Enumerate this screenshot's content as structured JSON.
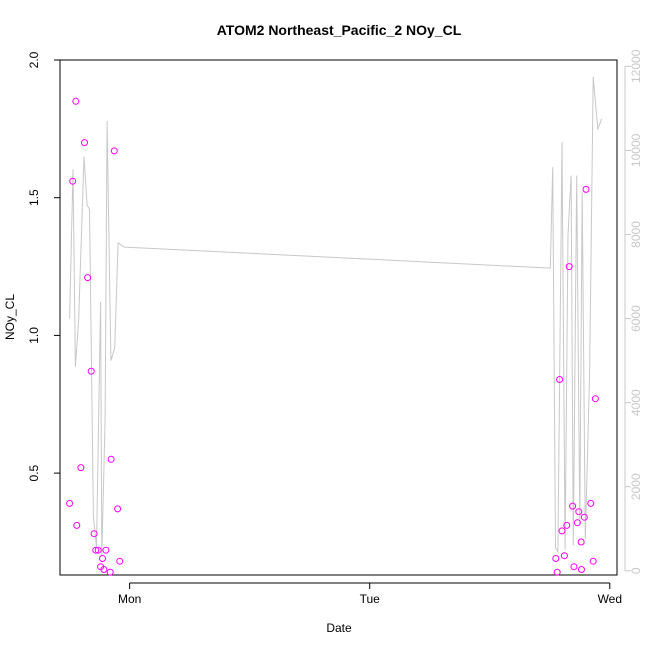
{
  "chart_data": {
    "type": "scatter",
    "title": "ATOM2 Northeast_Pacific_2 NOy_CL",
    "xlabel": "Date",
    "ylabel": "NOy_CL",
    "x_ticks": [
      "Mon",
      "Tue",
      "Wed"
    ],
    "x_tick_values": [
      0,
      1,
      2
    ],
    "y_ticks": [
      "0.5",
      "1.0",
      "1.5",
      "2.0"
    ],
    "y_tick_values": [
      0.5,
      1.0,
      1.5,
      2.0
    ],
    "ylim": [
      0.13,
      2.0
    ],
    "y2_ticks": [
      "0",
      "2000",
      "4000",
      "6000",
      "8000",
      "10000",
      "12000"
    ],
    "y2_tick_values": [
      0,
      2000,
      4000,
      6000,
      8000,
      10000,
      12000
    ],
    "y2lim": [
      -100,
      12150
    ],
    "xlim": [
      -0.29,
      2.03
    ],
    "grid": false,
    "colors": {
      "points": "#ff00ff",
      "line": "#c8c8c8",
      "axis": "#000000",
      "axis2": "#c8c8c8"
    },
    "series": [
      {
        "type": "points",
        "axis": "left",
        "x": [
          -0.25,
          -0.237,
          -0.224,
          -0.22,
          -0.203,
          -0.188,
          -0.175,
          -0.16,
          -0.148,
          -0.141,
          -0.131,
          -0.121,
          -0.113,
          -0.107,
          -0.099,
          -0.081,
          -0.077,
          -0.064,
          -0.05,
          -0.041,
          1.775,
          1.781,
          1.791,
          1.801,
          1.811,
          1.821,
          1.831,
          1.845,
          1.851,
          1.865,
          1.871,
          1.881,
          1.882,
          1.894,
          1.901,
          1.921,
          1.931,
          1.94
        ],
        "y": [
          0.39,
          1.56,
          1.85,
          0.31,
          0.52,
          1.7,
          1.21,
          0.87,
          0.28,
          0.22,
          0.22,
          0.16,
          0.19,
          0.15,
          0.22,
          0.14,
          0.55,
          1.67,
          0.37,
          0.18,
          0.19,
          0.14,
          0.84,
          0.29,
          0.2,
          0.31,
          1.25,
          0.38,
          0.16,
          0.32,
          0.36,
          0.25,
          0.15,
          0.34,
          1.53,
          0.39,
          0.18,
          0.77
        ]
      },
      {
        "type": "line",
        "axis": "right",
        "x": [
          -0.25,
          -0.236,
          -0.226,
          -0.212,
          -0.19,
          -0.177,
          -0.167,
          -0.151,
          -0.138,
          -0.131,
          -0.121,
          -0.116,
          -0.102,
          -0.094,
          -0.078,
          -0.062,
          -0.048,
          -0.022,
          1.752,
          1.762,
          1.774,
          1.784,
          1.801,
          1.814,
          1.826,
          1.839,
          1.848,
          1.862,
          1.875,
          1.885,
          1.898,
          1.916,
          1.931,
          1.95,
          1.966
        ],
        "y": [
          6000,
          9550,
          4850,
          6000,
          9850,
          8700,
          8600,
          1300,
          550,
          3000,
          6400,
          350,
          3600,
          10700,
          5000,
          5300,
          7800,
          7700,
          7200,
          9600,
          550,
          450,
          10200,
          500,
          8000,
          9400,
          600,
          9400,
          1100,
          9000,
          750,
          4700,
          11750,
          10500,
          10750
        ]
      }
    ]
  }
}
